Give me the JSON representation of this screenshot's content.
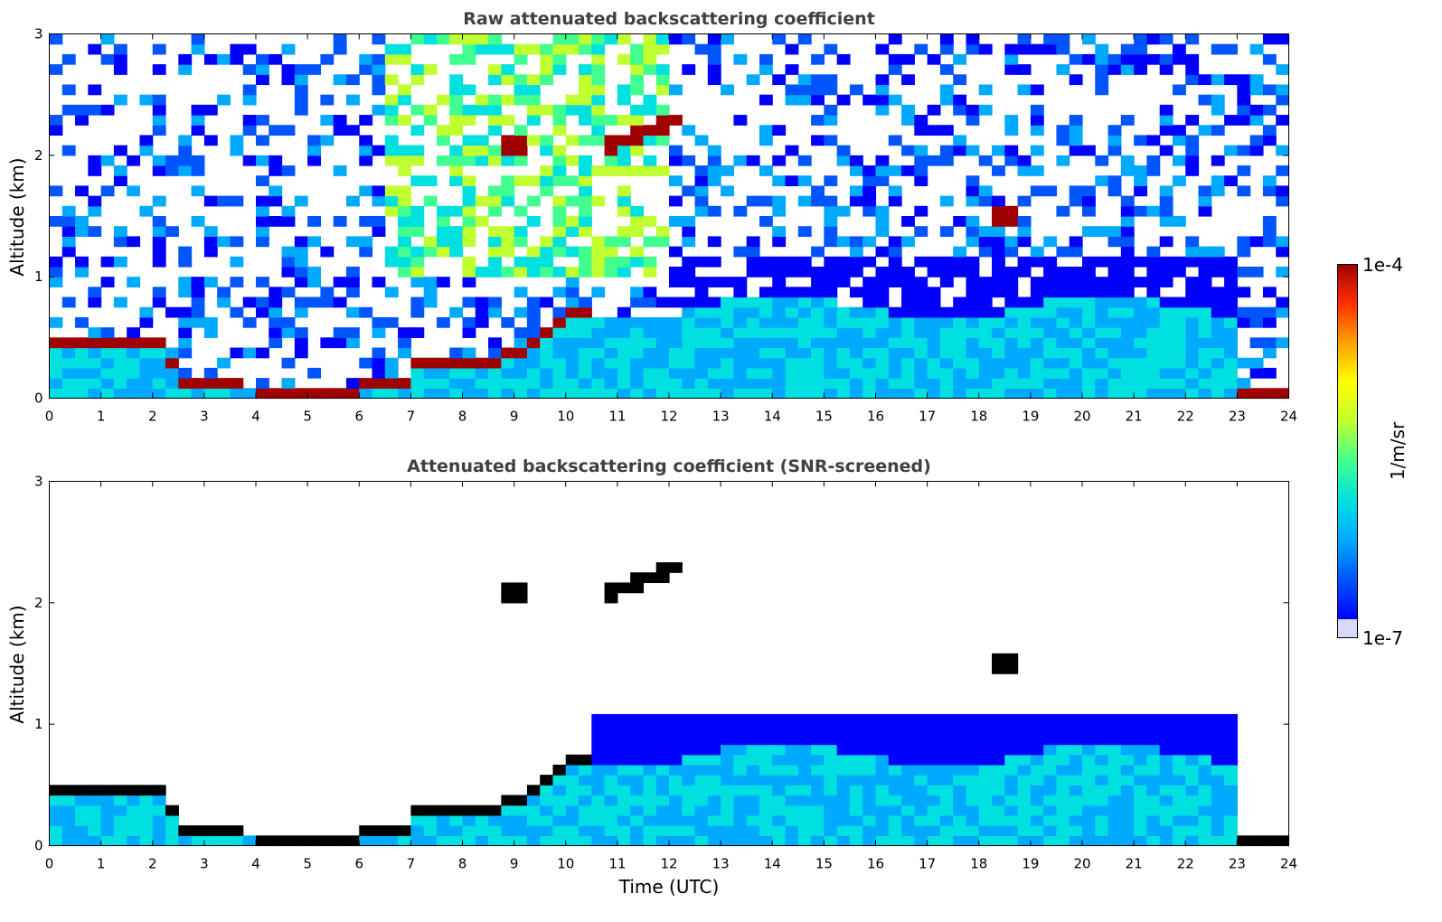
{
  "chart_data": [
    {
      "type": "heatmap",
      "title": "Raw attenuated backscattering coefficient",
      "xlabel": "",
      "ylabel": "Altitude (km)",
      "xlim": [
        0,
        24
      ],
      "ylim": [
        0,
        3
      ],
      "xticks": [
        "0",
        "1",
        "2",
        "3",
        "4",
        "5",
        "6",
        "7",
        "8",
        "9",
        "10",
        "11",
        "12",
        "13",
        "14",
        "15",
        "16",
        "17",
        "18",
        "19",
        "20",
        "21",
        "22",
        "23",
        "24"
      ],
      "yticks": [
        "0",
        "1",
        "2",
        "3"
      ],
      "features": [
        {
          "name": "boundary layer top",
          "x": [
            0,
            1,
            2.3,
            2.5,
            4,
            6,
            6.8,
            7.2,
            8,
            9.2,
            9.5,
            10.2,
            10.6
          ],
          "y": [
            0.5,
            0.45,
            0.42,
            0.1,
            0.08,
            0.08,
            0.12,
            0.3,
            0.28,
            0.36,
            0.5,
            0.7,
            0.8
          ]
        },
        {
          "name": "cloud layer 1",
          "x": [
            10.7,
            12.1
          ],
          "y": [
            2.05,
            2.3
          ]
        },
        {
          "name": "cloud layer 2",
          "x": [
            8.7,
            9.3
          ],
          "y": [
            2.1,
            2.1
          ]
        },
        {
          "name": "cloud layer 3",
          "x": [
            18.4,
            18.8
          ],
          "y": [
            1.5,
            1.5
          ]
        },
        {
          "name": "surface layer",
          "x": [
            23.0,
            23.8
          ],
          "y": [
            0.04,
            0.04
          ]
        }
      ]
    },
    {
      "type": "heatmap",
      "title": "Attenuated backscattering coefficient (SNR-screened)",
      "xlabel": "Time (UTC)",
      "ylabel": "Altitude (km)",
      "xlim": [
        0,
        24
      ],
      "ylim": [
        0,
        3
      ],
      "xticks": [
        "0",
        "1",
        "2",
        "3",
        "4",
        "5",
        "6",
        "7",
        "8",
        "9",
        "10",
        "11",
        "12",
        "13",
        "14",
        "15",
        "16",
        "17",
        "18",
        "19",
        "20",
        "21",
        "22",
        "23",
        "24"
      ],
      "yticks": [
        "0",
        "1",
        "2",
        "3"
      ]
    }
  ],
  "colorbar": {
    "label": "1/m/sr",
    "max_label": "1e-4",
    "min_label": "1e-7",
    "scale": "log",
    "colormap": [
      "#0000ff",
      "#0055ff",
      "#00aaff",
      "#00e0e0",
      "#40ff90",
      "#c0ff30",
      "#ffff00",
      "#ffa000",
      "#ff3000",
      "#a00000"
    ]
  }
}
